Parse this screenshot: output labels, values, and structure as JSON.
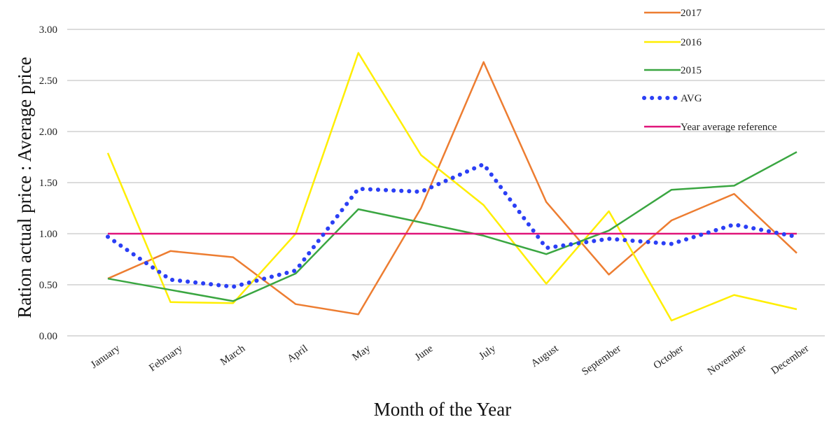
{
  "chart_data": {
    "type": "line",
    "xlabel": "Month of the Year",
    "ylabel": "Ration actual price : Average price",
    "ylim": [
      0,
      3
    ],
    "yticks": [
      "0.00",
      "0.50",
      "1.00",
      "1.50",
      "2.00",
      "2.50",
      "3.00"
    ],
    "grid": true,
    "legend_position": "top-right",
    "categories": [
      "January",
      "February",
      "March",
      "April",
      "May",
      "June",
      "July",
      "August",
      "September",
      "October",
      "November",
      "December"
    ],
    "series": [
      {
        "name": "2017",
        "color": "#ed7d31",
        "style": "solid",
        "values": [
          0.56,
          0.83,
          0.77,
          0.31,
          0.21,
          1.25,
          2.68,
          1.31,
          0.6,
          1.13,
          1.39,
          0.81
        ]
      },
      {
        "name": "2016",
        "color": "#ffee00",
        "style": "solid",
        "values": [
          1.79,
          0.33,
          0.32,
          1.0,
          2.77,
          1.77,
          1.28,
          0.51,
          1.22,
          0.15,
          0.4,
          0.26
        ]
      },
      {
        "name": "2015",
        "color": "#3aa641",
        "style": "solid",
        "values": [
          0.56,
          0.45,
          0.34,
          0.61,
          1.24,
          1.11,
          0.98,
          0.8,
          1.03,
          1.43,
          1.47,
          1.8
        ]
      },
      {
        "name": "AVG",
        "color": "#2b3ff5",
        "style": "dotted",
        "values": [
          0.97,
          0.55,
          0.48,
          0.64,
          1.44,
          1.41,
          1.68,
          0.86,
          0.95,
          0.9,
          1.09,
          0.97
        ]
      },
      {
        "name": "Year average reference",
        "color": "#e0157a",
        "style": "solid",
        "values": [
          1,
          1,
          1,
          1,
          1,
          1,
          1,
          1,
          1,
          1,
          1,
          1
        ]
      }
    ]
  }
}
